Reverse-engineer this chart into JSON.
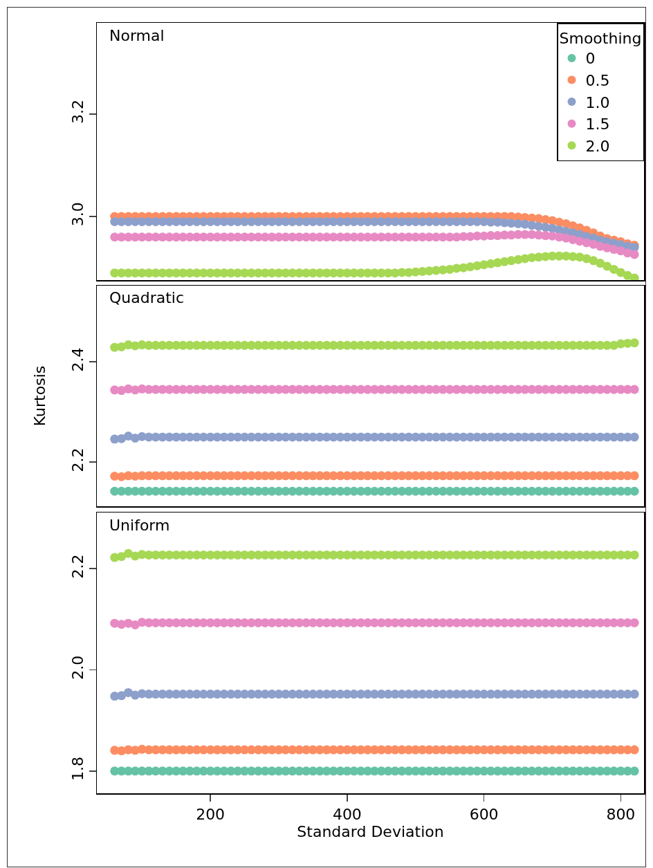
{
  "chart_data": [
    {
      "type": "scatter",
      "title": "Normal",
      "legend": "top right",
      "legend_title": "Smoothing",
      "marker": "circle",
      "tick_labels": "y",
      "xlim": [
        34,
        834
      ],
      "xticks": [
        200,
        400,
        600,
        800
      ],
      "ylim": [
        2.876,
        3.378
      ],
      "yticks": [
        {
          "value": 3,
          "label": "3.0"
        },
        3.2
      ],
      "x": [
        60,
        70,
        80,
        90,
        100,
        110,
        120,
        130,
        140,
        150,
        160,
        170,
        180,
        190,
        200,
        210,
        220,
        230,
        240,
        250,
        260,
        270,
        280,
        290,
        300,
        310,
        320,
        330,
        340,
        350,
        360,
        370,
        380,
        390,
        400,
        410,
        420,
        430,
        440,
        450,
        460,
        470,
        480,
        490,
        500,
        510,
        520,
        530,
        540,
        550,
        560,
        570,
        580,
        590,
        600,
        610,
        620,
        630,
        640,
        650,
        660,
        670,
        680,
        690,
        700,
        710,
        720,
        730,
        740,
        750,
        760,
        770,
        780,
        790,
        800,
        810,
        820
      ],
      "series": [
        {
          "name": "0",
          "color": "#66c2a5",
          "values": [
            null,
            null,
            null,
            null,
            null,
            null,
            null,
            null,
            null,
            null,
            null,
            null,
            null,
            null,
            null,
            null,
            null,
            null,
            null,
            null,
            null,
            null,
            null,
            null,
            null,
            null,
            null,
            null,
            null,
            null,
            null,
            null,
            null,
            null,
            null,
            null,
            null,
            null,
            null,
            null,
            null,
            null,
            null,
            null,
            null,
            null,
            null,
            null,
            null,
            null,
            null,
            null,
            null,
            null,
            null,
            null,
            null,
            null,
            null,
            null,
            null,
            null,
            null,
            null,
            null,
            null,
            null,
            null,
            null,
            null,
            null,
            null,
            null,
            null,
            null,
            null,
            null
          ]
        },
        {
          "name": "0.5",
          "color": "#fc8d62",
          "values": [
            3,
            3,
            3,
            3,
            3,
            3,
            3,
            3,
            3,
            3,
            3,
            3,
            3,
            3,
            3,
            3,
            3,
            3,
            3,
            3,
            3,
            3,
            3,
            3,
            3,
            3,
            3,
            3,
            3,
            3,
            3,
            3,
            3,
            3,
            3,
            3,
            3,
            3,
            3,
            3,
            3,
            3,
            3,
            3,
            3,
            3,
            3,
            3,
            3,
            3,
            3,
            3,
            3,
            3,
            3,
            3,
            3,
            3,
            3,
            2.999,
            2.998,
            2.997,
            2.996,
            2.994,
            2.992,
            2.989,
            2.986,
            2.982,
            2.978,
            2.973,
            2.968,
            2.962,
            2.957,
            2.954,
            2.951,
            2.947,
            2.944
          ]
        },
        {
          "name": "1.0",
          "color": "#8da0cb",
          "values": [
            2.99,
            2.99,
            2.99,
            2.99,
            2.99,
            2.99,
            2.99,
            2.99,
            2.99,
            2.99,
            2.99,
            2.99,
            2.99,
            2.99,
            2.99,
            2.99,
            2.99,
            2.99,
            2.99,
            2.99,
            2.99,
            2.99,
            2.99,
            2.99,
            2.99,
            2.99,
            2.99,
            2.99,
            2.99,
            2.99,
            2.99,
            2.99,
            2.99,
            2.99,
            2.99,
            2.99,
            2.99,
            2.99,
            2.99,
            2.99,
            2.99,
            2.99,
            2.99,
            2.99,
            2.99,
            2.99,
            2.99,
            2.99,
            2.99,
            2.99,
            2.99,
            2.99,
            2.99,
            2.99,
            2.99,
            2.989,
            2.989,
            2.988,
            2.987,
            2.986,
            2.985,
            2.983,
            2.981,
            2.979,
            2.977,
            2.974,
            2.971,
            2.968,
            2.965,
            2.961,
            2.958,
            2.954,
            2.951,
            2.948,
            2.945,
            2.942,
            2.94
          ]
        },
        {
          "name": "1.5",
          "color": "#e78ac3",
          "values": [
            2.96,
            2.96,
            2.96,
            2.96,
            2.96,
            2.96,
            2.96,
            2.96,
            2.96,
            2.96,
            2.96,
            2.96,
            2.96,
            2.96,
            2.96,
            2.96,
            2.96,
            2.96,
            2.96,
            2.96,
            2.96,
            2.96,
            2.96,
            2.96,
            2.96,
            2.96,
            2.96,
            2.96,
            2.96,
            2.96,
            2.96,
            2.96,
            2.96,
            2.96,
            2.96,
            2.96,
            2.96,
            2.96,
            2.96,
            2.96,
            2.96,
            2.96,
            2.96,
            2.96,
            2.96,
            2.96,
            2.96,
            2.96,
            2.96,
            2.96,
            2.96,
            2.961,
            2.961,
            2.962,
            2.962,
            2.963,
            2.963,
            2.964,
            2.964,
            2.965,
            2.965,
            2.965,
            2.964,
            2.963,
            2.962,
            2.96,
            2.958,
            2.955,
            2.952,
            2.949,
            2.946,
            2.942,
            2.939,
            2.936,
            2.933,
            2.929,
            2.926
          ]
        },
        {
          "name": "2.0",
          "color": "#a6d854",
          "values": [
            2.89,
            2.89,
            2.89,
            2.89,
            2.89,
            2.89,
            2.89,
            2.89,
            2.89,
            2.89,
            2.89,
            2.89,
            2.89,
            2.89,
            2.89,
            2.89,
            2.89,
            2.89,
            2.89,
            2.89,
            2.89,
            2.89,
            2.89,
            2.89,
            2.89,
            2.89,
            2.89,
            2.89,
            2.89,
            2.89,
            2.89,
            2.89,
            2.89,
            2.89,
            2.89,
            2.89,
            2.89,
            2.89,
            2.89,
            2.89,
            2.89,
            2.89,
            2.891,
            2.891,
            2.892,
            2.893,
            2.894,
            2.895,
            2.896,
            2.897,
            2.899,
            2.9,
            2.902,
            2.904,
            2.906,
            2.908,
            2.91,
            2.912,
            2.914,
            2.916,
            2.918,
            2.92,
            2.921,
            2.922,
            2.923,
            2.923,
            2.923,
            2.922,
            2.921,
            2.918,
            2.914,
            2.909,
            2.903,
            2.897,
            2.891,
            2.885,
            2.88
          ]
        }
      ]
    },
    {
      "type": "scatter",
      "title": "Quadratic",
      "ylabel": "Kurtosis",
      "marker": "circle",
      "tick_labels": "y",
      "xlim": [
        34,
        834
      ],
      "xticks": [
        200,
        400,
        600,
        800
      ],
      "ylim": [
        2.112,
        2.552
      ],
      "yticks": [
        2.2,
        2.4
      ],
      "x": [
        60,
        70,
        80,
        90,
        100,
        110,
        120,
        130,
        140,
        150,
        160,
        170,
        180,
        190,
        200,
        210,
        220,
        230,
        240,
        250,
        260,
        270,
        280,
        290,
        300,
        310,
        320,
        330,
        340,
        350,
        360,
        370,
        380,
        390,
        400,
        410,
        420,
        430,
        440,
        450,
        460,
        470,
        480,
        490,
        500,
        510,
        520,
        530,
        540,
        550,
        560,
        570,
        580,
        590,
        600,
        610,
        620,
        630,
        640,
        650,
        660,
        670,
        680,
        690,
        700,
        710,
        720,
        730,
        740,
        750,
        760,
        770,
        780,
        790,
        800,
        810,
        820
      ],
      "series": [
        {
          "color": "#66c2a5",
          "values": [
            2.142,
            2.142,
            2.142,
            2.142,
            2.142,
            2.142,
            2.142,
            2.142,
            2.142,
            2.142,
            2.142,
            2.142,
            2.142,
            2.142,
            2.142,
            2.142,
            2.142,
            2.142,
            2.142,
            2.142,
            2.142,
            2.142,
            2.142,
            2.142,
            2.142,
            2.142,
            2.142,
            2.142,
            2.142,
            2.142,
            2.142,
            2.142,
            2.142,
            2.142,
            2.142,
            2.142,
            2.142,
            2.142,
            2.142,
            2.142,
            2.142,
            2.142,
            2.142,
            2.142,
            2.142,
            2.142,
            2.142,
            2.142,
            2.142,
            2.142,
            2.142,
            2.142,
            2.142,
            2.142,
            2.142,
            2.142,
            2.142,
            2.142,
            2.142,
            2.142,
            2.142,
            2.142,
            2.142,
            2.142,
            2.142,
            2.142,
            2.142,
            2.142,
            2.142,
            2.142,
            2.142,
            2.142,
            2.142,
            2.142,
            2.142,
            2.142,
            2.142
          ]
        },
        {
          "color": "#fc8d62",
          "values": [
            2.172,
            2.171,
            2.173,
            2.172,
            2.173,
            2.173,
            2.173,
            2.173,
            2.173,
            2.173,
            2.173,
            2.173,
            2.173,
            2.173,
            2.173,
            2.173,
            2.173,
            2.173,
            2.173,
            2.173,
            2.173,
            2.173,
            2.173,
            2.173,
            2.173,
            2.173,
            2.173,
            2.173,
            2.173,
            2.173,
            2.173,
            2.173,
            2.173,
            2.173,
            2.173,
            2.173,
            2.173,
            2.173,
            2.173,
            2.173,
            2.173,
            2.173,
            2.173,
            2.173,
            2.173,
            2.173,
            2.173,
            2.173,
            2.173,
            2.173,
            2.173,
            2.173,
            2.173,
            2.173,
            2.173,
            2.173,
            2.173,
            2.173,
            2.173,
            2.173,
            2.173,
            2.173,
            2.173,
            2.173,
            2.173,
            2.173,
            2.173,
            2.173,
            2.173,
            2.173,
            2.173,
            2.173,
            2.173,
            2.173,
            2.173,
            2.173,
            2.173
          ]
        },
        {
          "color": "#8da0cb",
          "values": [
            2.246,
            2.247,
            2.252,
            2.248,
            2.251,
            2.25,
            2.25,
            2.25,
            2.25,
            2.25,
            2.25,
            2.25,
            2.25,
            2.25,
            2.25,
            2.25,
            2.25,
            2.25,
            2.25,
            2.25,
            2.25,
            2.25,
            2.25,
            2.25,
            2.25,
            2.25,
            2.25,
            2.25,
            2.25,
            2.25,
            2.25,
            2.25,
            2.25,
            2.25,
            2.25,
            2.25,
            2.25,
            2.25,
            2.25,
            2.25,
            2.25,
            2.25,
            2.25,
            2.25,
            2.25,
            2.25,
            2.25,
            2.25,
            2.25,
            2.25,
            2.25,
            2.25,
            2.25,
            2.25,
            2.25,
            2.25,
            2.25,
            2.25,
            2.25,
            2.25,
            2.25,
            2.25,
            2.25,
            2.25,
            2.25,
            2.25,
            2.25,
            2.25,
            2.25,
            2.25,
            2.25,
            2.25,
            2.25,
            2.25,
            2.25,
            2.25,
            2.25
          ]
        },
        {
          "color": "#e78ac3",
          "values": [
            2.344,
            2.343,
            2.346,
            2.344,
            2.346,
            2.345,
            2.345,
            2.345,
            2.345,
            2.345,
            2.345,
            2.345,
            2.345,
            2.345,
            2.345,
            2.345,
            2.345,
            2.345,
            2.345,
            2.345,
            2.345,
            2.345,
            2.345,
            2.345,
            2.345,
            2.345,
            2.345,
            2.345,
            2.345,
            2.345,
            2.345,
            2.345,
            2.345,
            2.345,
            2.345,
            2.345,
            2.345,
            2.345,
            2.345,
            2.345,
            2.345,
            2.345,
            2.345,
            2.345,
            2.345,
            2.345,
            2.345,
            2.345,
            2.345,
            2.345,
            2.345,
            2.345,
            2.345,
            2.345,
            2.345,
            2.345,
            2.345,
            2.345,
            2.345,
            2.345,
            2.345,
            2.345,
            2.345,
            2.345,
            2.345,
            2.345,
            2.345,
            2.345,
            2.345,
            2.345,
            2.345,
            2.345,
            2.345,
            2.345,
            2.345,
            2.345,
            2.345
          ]
        },
        {
          "color": "#a6d854",
          "values": [
            2.429,
            2.43,
            2.434,
            2.432,
            2.434,
            2.433,
            2.433,
            2.433,
            2.433,
            2.433,
            2.433,
            2.433,
            2.433,
            2.433,
            2.433,
            2.433,
            2.433,
            2.433,
            2.433,
            2.433,
            2.433,
            2.433,
            2.433,
            2.433,
            2.433,
            2.433,
            2.433,
            2.433,
            2.433,
            2.433,
            2.433,
            2.433,
            2.433,
            2.433,
            2.433,
            2.433,
            2.433,
            2.433,
            2.433,
            2.433,
            2.433,
            2.433,
            2.433,
            2.433,
            2.433,
            2.433,
            2.433,
            2.433,
            2.433,
            2.433,
            2.433,
            2.433,
            2.433,
            2.433,
            2.433,
            2.433,
            2.433,
            2.433,
            2.433,
            2.433,
            2.433,
            2.433,
            2.433,
            2.433,
            2.433,
            2.433,
            2.433,
            2.433,
            2.433,
            2.433,
            2.433,
            2.433,
            2.433,
            2.433,
            2.436,
            2.437,
            2.438
          ]
        }
      ]
    },
    {
      "type": "scatter",
      "title": "Uniform",
      "xlabel": "Standard Deviation",
      "marker": "circle",
      "xlim": [
        34,
        834
      ],
      "xticks": [
        200,
        400,
        600,
        800
      ],
      "ylim": [
        1.756,
        2.311
      ],
      "yticks": [
        1.8,
        {
          "value": 2,
          "label": "2.0"
        },
        2.2
      ],
      "x": [
        60,
        70,
        80,
        90,
        100,
        110,
        120,
        130,
        140,
        150,
        160,
        170,
        180,
        190,
        200,
        210,
        220,
        230,
        240,
        250,
        260,
        270,
        280,
        290,
        300,
        310,
        320,
        330,
        340,
        350,
        360,
        370,
        380,
        390,
        400,
        410,
        420,
        430,
        440,
        450,
        460,
        470,
        480,
        490,
        500,
        510,
        520,
        530,
        540,
        550,
        560,
        570,
        580,
        590,
        600,
        610,
        620,
        630,
        640,
        650,
        660,
        670,
        680,
        690,
        700,
        710,
        720,
        730,
        740,
        750,
        760,
        770,
        780,
        790,
        800,
        810,
        820
      ],
      "series": [
        {
          "color": "#66c2a5",
          "values": [
            1.8,
            1.8,
            1.8,
            1.8,
            1.8,
            1.8,
            1.8,
            1.8,
            1.8,
            1.8,
            1.8,
            1.8,
            1.8,
            1.8,
            1.8,
            1.8,
            1.8,
            1.8,
            1.8,
            1.8,
            1.8,
            1.8,
            1.8,
            1.8,
            1.8,
            1.8,
            1.8,
            1.8,
            1.8,
            1.8,
            1.8,
            1.8,
            1.8,
            1.8,
            1.8,
            1.8,
            1.8,
            1.8,
            1.8,
            1.8,
            1.8,
            1.8,
            1.8,
            1.8,
            1.8,
            1.8,
            1.8,
            1.8,
            1.8,
            1.8,
            1.8,
            1.8,
            1.8,
            1.8,
            1.8,
            1.8,
            1.8,
            1.8,
            1.8,
            1.8,
            1.8,
            1.8,
            1.8,
            1.8,
            1.8,
            1.8,
            1.8,
            1.8,
            1.8,
            1.8,
            1.8,
            1.8,
            1.8,
            1.8,
            1.8,
            1.8,
            1.8
          ]
        },
        {
          "color": "#fc8d62",
          "values": [
            1.841,
            1.84,
            1.842,
            1.841,
            1.843,
            1.842,
            1.842,
            1.842,
            1.842,
            1.842,
            1.842,
            1.842,
            1.842,
            1.842,
            1.842,
            1.842,
            1.842,
            1.842,
            1.842,
            1.842,
            1.842,
            1.842,
            1.842,
            1.842,
            1.842,
            1.842,
            1.842,
            1.842,
            1.842,
            1.842,
            1.842,
            1.842,
            1.842,
            1.842,
            1.842,
            1.842,
            1.842,
            1.842,
            1.842,
            1.842,
            1.842,
            1.842,
            1.842,
            1.842,
            1.842,
            1.842,
            1.842,
            1.842,
            1.842,
            1.842,
            1.842,
            1.842,
            1.842,
            1.842,
            1.842,
            1.842,
            1.842,
            1.842,
            1.842,
            1.842,
            1.842,
            1.842,
            1.842,
            1.842,
            1.842,
            1.842,
            1.842,
            1.842,
            1.842,
            1.842,
            1.842,
            1.842,
            1.842,
            1.842,
            1.842,
            1.842,
            1.842
          ]
        },
        {
          "color": "#8da0cb",
          "values": [
            1.948,
            1.949,
            1.955,
            1.95,
            1.953,
            1.952,
            1.952,
            1.952,
            1.952,
            1.952,
            1.952,
            1.952,
            1.952,
            1.952,
            1.952,
            1.952,
            1.952,
            1.952,
            1.952,
            1.952,
            1.952,
            1.952,
            1.952,
            1.952,
            1.952,
            1.952,
            1.952,
            1.952,
            1.952,
            1.952,
            1.952,
            1.952,
            1.952,
            1.952,
            1.952,
            1.952,
            1.952,
            1.952,
            1.952,
            1.952,
            1.952,
            1.952,
            1.952,
            1.952,
            1.952,
            1.952,
            1.952,
            1.952,
            1.952,
            1.952,
            1.952,
            1.952,
            1.952,
            1.952,
            1.952,
            1.952,
            1.952,
            1.952,
            1.952,
            1.952,
            1.952,
            1.952,
            1.952,
            1.952,
            1.952,
            1.952,
            1.952,
            1.952,
            1.952,
            1.952,
            1.952,
            1.952,
            1.952,
            1.952,
            1.952,
            1.952,
            1.952
          ]
        },
        {
          "color": "#e78ac3",
          "values": [
            2.092,
            2.09,
            2.092,
            2.089,
            2.094,
            2.093,
            2.093,
            2.093,
            2.093,
            2.093,
            2.093,
            2.093,
            2.093,
            2.093,
            2.093,
            2.093,
            2.093,
            2.093,
            2.093,
            2.093,
            2.093,
            2.093,
            2.093,
            2.093,
            2.093,
            2.093,
            2.093,
            2.093,
            2.093,
            2.093,
            2.093,
            2.093,
            2.093,
            2.093,
            2.093,
            2.093,
            2.093,
            2.093,
            2.093,
            2.093,
            2.093,
            2.093,
            2.093,
            2.093,
            2.093,
            2.093,
            2.093,
            2.093,
            2.093,
            2.093,
            2.093,
            2.093,
            2.093,
            2.093,
            2.093,
            2.093,
            2.093,
            2.093,
            2.093,
            2.093,
            2.093,
            2.093,
            2.093,
            2.093,
            2.093,
            2.093,
            2.093,
            2.093,
            2.093,
            2.093,
            2.093,
            2.093,
            2.093,
            2.093,
            2.093,
            2.093,
            2.093
          ]
        },
        {
          "color": "#a6d854",
          "values": [
            2.222,
            2.224,
            2.23,
            2.225,
            2.228,
            2.227,
            2.227,
            2.227,
            2.227,
            2.227,
            2.227,
            2.227,
            2.227,
            2.227,
            2.227,
            2.227,
            2.227,
            2.227,
            2.227,
            2.227,
            2.227,
            2.227,
            2.227,
            2.227,
            2.227,
            2.227,
            2.227,
            2.227,
            2.227,
            2.227,
            2.227,
            2.227,
            2.227,
            2.227,
            2.227,
            2.227,
            2.227,
            2.227,
            2.227,
            2.227,
            2.227,
            2.227,
            2.227,
            2.227,
            2.227,
            2.227,
            2.227,
            2.227,
            2.227,
            2.227,
            2.227,
            2.227,
            2.227,
            2.227,
            2.227,
            2.227,
            2.227,
            2.227,
            2.227,
            2.227,
            2.227,
            2.227,
            2.227,
            2.227,
            2.227,
            2.227,
            2.227,
            2.227,
            2.227,
            2.227,
            2.227,
            2.227,
            2.227,
            2.227,
            2.227,
            2.227,
            2.227
          ]
        }
      ]
    }
  ]
}
